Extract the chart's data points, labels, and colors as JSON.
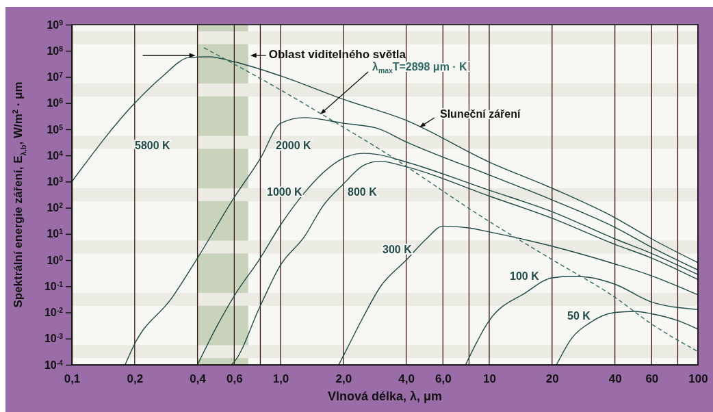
{
  "chart_data": {
    "type": "line",
    "log": "xy",
    "grid": true,
    "line_style": "solid",
    "xlabel": "Vlnová délka, λ, μm",
    "ylabel": "Spektrální energie záření, E$_{λ,b}$, W/m$^{2}$ · μm",
    "xlim": [
      0.1,
      100
    ],
    "ylim": [
      0.0001,
      1000000000
    ],
    "xticks": [
      {
        "value": 0.1,
        "label": "0,1"
      },
      {
        "value": 0.2,
        "label": "0,2"
      },
      {
        "value": 0.4,
        "label": "0,4"
      },
      {
        "value": 0.6,
        "label": "0,6"
      },
      {
        "value": 0.8,
        "label": null
      },
      {
        "value": 1,
        "label": "1,0"
      },
      {
        "value": 2,
        "label": "2,0"
      },
      {
        "value": 4,
        "label": "4,0"
      },
      {
        "value": 6,
        "label": "6,0"
      },
      {
        "value": 8,
        "label": null
      },
      10,
      20,
      40,
      60,
      {
        "value": 80,
        "label": null
      },
      100
    ],
    "yticks": [
      {
        "value": 0.0001,
        "label": "10$^{-4}$"
      },
      {
        "value": 0.001,
        "label": "10$^{-3}$"
      },
      {
        "value": 0.01,
        "label": "10$^{-2}$"
      },
      {
        "value": 0.1,
        "label": "10$^{-1}$"
      },
      {
        "value": 1,
        "label": "10$^{0}$"
      },
      {
        "value": 10,
        "label": "10$^{1}$"
      },
      {
        "value": 100,
        "label": "10$^{2}$"
      },
      {
        "value": 1000,
        "label": "10$^{3}$"
      },
      {
        "value": 10000,
        "label": "10$^{4}$"
      },
      {
        "value": 100000,
        "label": "10$^{5}$"
      },
      {
        "value": 1000000,
        "label": "10$^{6}$"
      },
      {
        "value": 10000000,
        "label": "10$^{7}$"
      },
      {
        "value": 100000000,
        "label": "10$^{8}$"
      },
      {
        "value": 1000000000,
        "label": "10$^{9}$"
      }
    ],
    "bands": [
      {
        "axis": "x",
        "from": 0.4,
        "to": 0.7,
        "label": "Oblast viditelného světla",
        "color": "#c9d3bb"
      },
      {
        "axis": "y",
        "from": 0.00018,
        "to": 0.00056,
        "color": "#ebebe4"
      },
      {
        "axis": "y",
        "from": 0.018,
        "to": 0.056,
        "color": "#ebebe4"
      },
      {
        "axis": "y",
        "from": 1.8,
        "to": 5.6,
        "color": "#ebebe4"
      },
      {
        "axis": "y",
        "from": 180,
        "to": 560,
        "color": "#ebebe4"
      },
      {
        "axis": "y",
        "from": 18000,
        "to": 56000,
        "color": "#ebebe4"
      },
      {
        "axis": "y",
        "from": 1800000,
        "to": 5600000,
        "color": "#ebebe4"
      },
      {
        "axis": "y",
        "from": 180000000,
        "to": 560000000,
        "color": "#ebebe4"
      }
    ],
    "series": [
      {
        "name": "5800 K",
        "color": "#1e4a47",
        "x": [
          0.1,
          0.2,
          0.27,
          0.365,
          0.455,
          0.6,
          1,
          2,
          4,
          10,
          20,
          40,
          60,
          100
        ],
        "values": [
          1000,
          1000000,
          10000000,
          55000000,
          59000000,
          38000000,
          11000000,
          1400000,
          220000,
          5600,
          560,
          42,
          6.5,
          0.8
        ]
      },
      {
        "name": "2000 K",
        "color": "#1e4a47",
        "x": [
          0.18,
          0.2,
          0.3,
          0.4,
          0.6,
          0.8,
          1,
          1.3,
          2,
          2.9,
          4,
          10,
          20,
          40,
          60,
          100
        ],
        "values": [
          0.0001,
          0.00063,
          0.034,
          1.2,
          250,
          7600,
          170000,
          280000,
          170000,
          110000,
          33000,
          1800,
          200,
          18,
          3.1,
          0.42
        ]
      },
      {
        "name": "1000 K",
        "color": "#1e4a47",
        "x": [
          0.4,
          0.5,
          0.6,
          0.8,
          1,
          1.3,
          1.6,
          2,
          2.5,
          2.9,
          4,
          10,
          20,
          40,
          60,
          100
        ],
        "values": [
          0.0001,
          0.0034,
          0.043,
          1.2,
          22,
          370,
          2200,
          7900,
          12000,
          11000,
          5600,
          470,
          71,
          6.5,
          1.8,
          0.28
        ]
      },
      {
        "name": "800 K",
        "color": "#1e4a47",
        "x": [
          0.58,
          0.6,
          0.8,
          1,
          1.3,
          1.6,
          2,
          2.5,
          3,
          4,
          10,
          20,
          40,
          60,
          100
        ],
        "values": [
          0.0001,
          0.00013,
          0.018,
          0.65,
          7.8,
          120,
          810,
          4200,
          6000,
          3700,
          280,
          40,
          4,
          1.2,
          0.18
        ]
      },
      {
        "name": "300 K",
        "color": "#1e4a47",
        "x": [
          1.9,
          2,
          2.5,
          3,
          4,
          5,
          6,
          8,
          10,
          20,
          40,
          60,
          100
        ],
        "values": [
          0.0001,
          0.00022,
          0.0071,
          0.093,
          1,
          6.5,
          20,
          17,
          12,
          3.4,
          0.71,
          0.25,
          0.047
        ]
      },
      {
        "name": "100 K",
        "color": "#1e4a47",
        "x": [
          7.7,
          10,
          15,
          20,
          25,
          30,
          40,
          60,
          100
        ],
        "values": [
          0.0001,
          0.0049,
          0.058,
          0.21,
          0.24,
          0.22,
          0.12,
          0.025,
          0.013
        ]
      },
      {
        "name": "50 K",
        "color": "#1e4a47",
        "x": [
          21,
          25,
          30,
          40,
          50,
          60,
          80,
          100
        ],
        "values": [
          0.0001,
          0.0011,
          0.0038,
          0.01,
          0.011,
          0.0089,
          0.0049,
          0.0023
        ]
      },
      {
        "name": "λ$_{max}$T=2898 μm · K",
        "color": "#2f6b66",
        "line_style": "dashed",
        "x": [
          0.43,
          1,
          2,
          2.9,
          10,
          20,
          40,
          60,
          100
        ],
        "values": [
          130000000,
          3200000,
          120000,
          20000,
          30,
          1.05,
          0.038,
          0.0036,
          0.00032
        ]
      }
    ],
    "annotations": [
      "Sluneční záření"
    ]
  }
}
